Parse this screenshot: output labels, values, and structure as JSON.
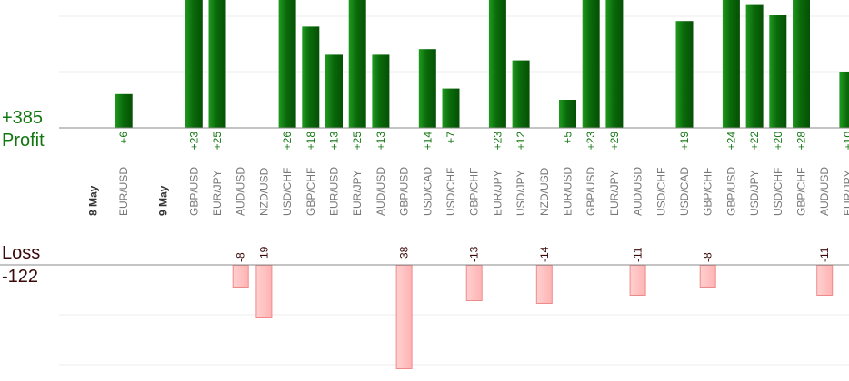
{
  "summary": {
    "profit_total": "+385",
    "profit_label": "Profit",
    "loss_label": "Loss",
    "loss_total": "-122"
  },
  "colors": {
    "profit_bar": "#0a6a0a",
    "profit_bar_light": "#1f9a1f",
    "loss_bar": "#ffb3b3",
    "loss_bar_stroke": "#f08a8a"
  },
  "chart_data": [
    {
      "type": "bar",
      "title": "",
      "categories": [
        "",
        "EUR/USD",
        "",
        "",
        "GBP/USD",
        "EUR/JPY",
        "AUD/USD",
        "NZD/USD",
        "USD/CHF",
        "GBP/CHF",
        "EUR/USD",
        "EUR/JPY",
        "AUD/USD",
        "GBP/USD",
        "USD/CAD",
        "USD/CHF",
        "GBP/CHF",
        "EUR/JPY",
        "USD/JPY",
        "NZD/USD",
        "EUR/USD",
        "GBP/USD",
        "EUR/JPY",
        "AUD/USD",
        "USD/CHF",
        "USD/CAD",
        "GBP/CHF",
        "GBP/USD",
        "USD/JPY",
        "USD/CHF",
        "GBP/CHF",
        "AUD/USD",
        "EUR/JPY"
      ],
      "date_markers": [
        {
          "index": 0,
          "label": "8 May"
        },
        {
          "index": 3,
          "label": "9 May"
        }
      ],
      "series": [
        {
          "name": "Profit",
          "values": [
            null,
            6,
            null,
            null,
            23,
            25,
            null,
            null,
            26,
            18,
            13,
            25,
            13,
            null,
            14,
            7,
            null,
            23,
            12,
            null,
            5,
            23,
            29,
            null,
            null,
            19,
            null,
            24,
            22,
            20,
            28,
            null,
            10
          ]
        },
        {
          "name": "Loss",
          "values": [
            null,
            null,
            null,
            null,
            null,
            null,
            -8,
            -19,
            null,
            null,
            null,
            null,
            null,
            -38,
            null,
            null,
            -13,
            null,
            null,
            -14,
            null,
            null,
            null,
            -11,
            null,
            null,
            -8,
            null,
            null,
            null,
            null,
            -11,
            null
          ]
        }
      ],
      "value_labels": [
        "",
        "+6",
        "",
        "",
        "+23",
        "+25",
        "-8",
        "-19",
        "+26",
        "+18",
        "+13",
        "+25",
        "+13",
        "-38",
        "+14",
        "+7",
        "-13",
        "+23",
        "+12",
        "-14",
        "+5",
        "+23",
        "+29",
        "-11",
        "",
        "+19",
        "-8",
        "+24",
        "+22",
        "+20",
        "+28",
        "-11",
        "+10"
      ],
      "ylim_profit": [
        0,
        23
      ],
      "ylim_loss": [
        -38,
        0
      ],
      "grid": true
    }
  ]
}
